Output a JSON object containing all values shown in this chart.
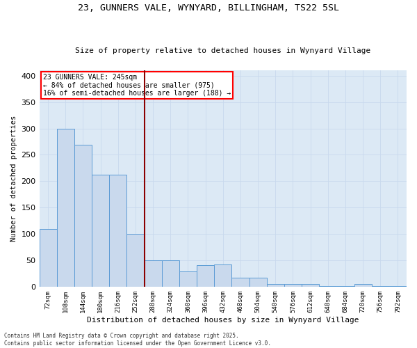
{
  "title_line1": "23, GUNNERS VALE, WYNYARD, BILLINGHAM, TS22 5SL",
  "title_line2": "Size of property relative to detached houses in Wynyard Village",
  "xlabel": "Distribution of detached houses by size in Wynyard Village",
  "ylabel": "Number of detached properties",
  "bar_color": "#c9d9ed",
  "bar_edge_color": "#5b9bd5",
  "grid_color": "#c8d9ed",
  "background_color": "#dce9f5",
  "bins": [
    "72sqm",
    "108sqm",
    "144sqm",
    "180sqm",
    "216sqm",
    "252sqm",
    "288sqm",
    "324sqm",
    "360sqm",
    "396sqm",
    "432sqm",
    "468sqm",
    "504sqm",
    "540sqm",
    "576sqm",
    "612sqm",
    "648sqm",
    "684sqm",
    "720sqm",
    "756sqm",
    "792sqm"
  ],
  "values": [
    110,
    299,
    269,
    213,
    213,
    100,
    50,
    50,
    30,
    41,
    42,
    18,
    18,
    6,
    6,
    6,
    2,
    2,
    6,
    2,
    2
  ],
  "property_line_x": 5.5,
  "annotation_title": "23 GUNNERS VALE: 245sqm",
  "annotation_line1": "← 84% of detached houses are smaller (975)",
  "annotation_line2": "16% of semi-detached houses are larger (188) →",
  "footer_line1": "Contains HM Land Registry data © Crown copyright and database right 2025.",
  "footer_line2": "Contains public sector information licensed under the Open Government Licence v3.0.",
  "ylim": [
    0,
    410
  ],
  "yticks": [
    0,
    50,
    100,
    150,
    200,
    250,
    300,
    350,
    400
  ]
}
